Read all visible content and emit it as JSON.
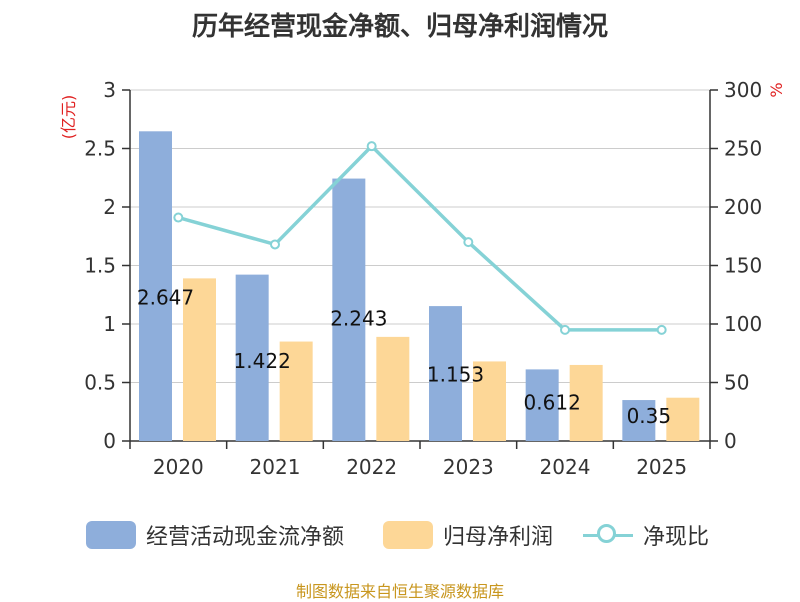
{
  "title": "历年经营现金净额、归母净利润情况",
  "source": "制图数据来自恒生聚源数据库",
  "colors": {
    "cashflow": "#8eaedb",
    "profit": "#fdd797",
    "ratio": "#85d2d6",
    "left_unit": "#e02020",
    "right_unit": "#e02020",
    "axis": "#333333",
    "grid": "#cccccc",
    "text": "#333333"
  },
  "chart_data": {
    "type": "bar",
    "categories": [
      "2020",
      "2021",
      "2022",
      "2023",
      "2024",
      "2025"
    ],
    "y_left": {
      "unit": "(亿元)",
      "range": [
        0,
        3
      ],
      "ticks": [
        "0",
        "0.5",
        "1",
        "1.5",
        "2",
        "2.5",
        "3"
      ]
    },
    "y_right": {
      "unit": "%",
      "range": [
        0,
        300
      ],
      "ticks": [
        "0",
        "50",
        "100",
        "150",
        "200",
        "250",
        "300"
      ]
    },
    "grid": true,
    "legend_position": "bottom",
    "series": [
      {
        "name": "经营活动现金流净额",
        "type": "bar",
        "axis": "left",
        "values": [
          2.647,
          1.422,
          2.243,
          1.153,
          0.612,
          0.35
        ],
        "labels": [
          "2.647",
          "1.422",
          "2.243",
          "1.153",
          "0.612",
          "0.35"
        ]
      },
      {
        "name": "归母净利润",
        "type": "bar",
        "axis": "left",
        "values": [
          1.39,
          0.85,
          0.89,
          0.68,
          0.65,
          0.37
        ]
      },
      {
        "name": "净现比",
        "type": "line",
        "axis": "right",
        "values": [
          191,
          168,
          252,
          170,
          95,
          95
        ]
      }
    ]
  }
}
